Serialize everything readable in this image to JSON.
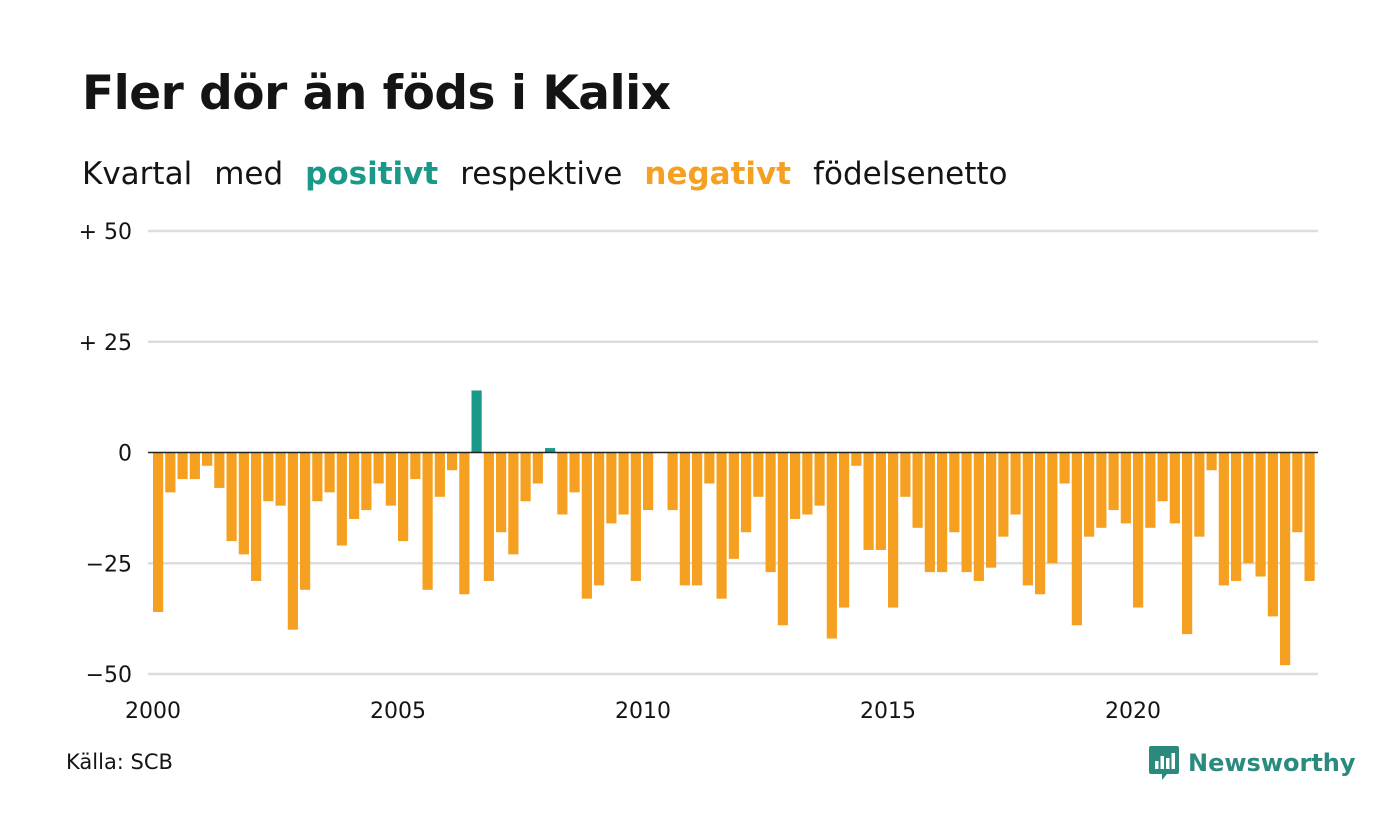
{
  "title": "Fler dör än föds i Kalix",
  "subtitle": {
    "part1": "Kvartal",
    "part2": "med",
    "positive": "positivt",
    "part3": "respektive",
    "negative": "negativt",
    "part4": "födelsenetto"
  },
  "source": "Källa: SCB",
  "brand": {
    "name": "Newsworthy",
    "icon": "newsworthy-logo-icon",
    "color": "#2a8a7e"
  },
  "colors": {
    "positive": "#1a9988",
    "negative": "#f5a020",
    "grid": "#dddddd",
    "zero_line": "#222222"
  },
  "chart_data": {
    "type": "bar",
    "x_start": "2000 Q1",
    "x_ticks": [
      {
        "label": "2000",
        "year": 2000
      },
      {
        "label": "2005",
        "year": 2005
      },
      {
        "label": "2010",
        "year": 2010
      },
      {
        "label": "2015",
        "year": 2015
      },
      {
        "label": "2020",
        "year": 2020
      }
    ],
    "y_ticks": [
      {
        "value": 50,
        "label": "+ 50"
      },
      {
        "value": 25,
        "label": "+ 25"
      },
      {
        "value": 0,
        "label": "0"
      },
      {
        "value": -25,
        "label": "−25"
      },
      {
        "value": -50,
        "label": "−50"
      }
    ],
    "ylim": [
      -50,
      50
    ],
    "grid": true,
    "values": [
      -36,
      -9,
      -6,
      -6,
      -3,
      -8,
      -20,
      -23,
      -29,
      -11,
      -12,
      -40,
      -31,
      -11,
      -9,
      -21,
      -15,
      -13,
      -7,
      -12,
      -20,
      -6,
      -31,
      -10,
      -4,
      -32,
      14,
      -29,
      -18,
      -23,
      -11,
      -7,
      1,
      -14,
      -9,
      -33,
      -30,
      -16,
      -14,
      -29,
      -13,
      null,
      -13,
      -30,
      -30,
      -7,
      -33,
      -24,
      -18,
      -10,
      -27,
      -39,
      -15,
      -14,
      -12,
      -42,
      -35,
      -3,
      -22,
      -22,
      -35,
      -10,
      -17,
      -27,
      -27,
      -18,
      -27,
      -29,
      -26,
      -19,
      -14,
      -30,
      -32,
      -25,
      -7,
      -39,
      -19,
      -17,
      -13,
      -16,
      -35,
      -17,
      -11,
      -16,
      -41,
      -19,
      -4,
      -30,
      -29,
      -25,
      -28,
      -37,
      -48,
      -18,
      -29
    ]
  }
}
